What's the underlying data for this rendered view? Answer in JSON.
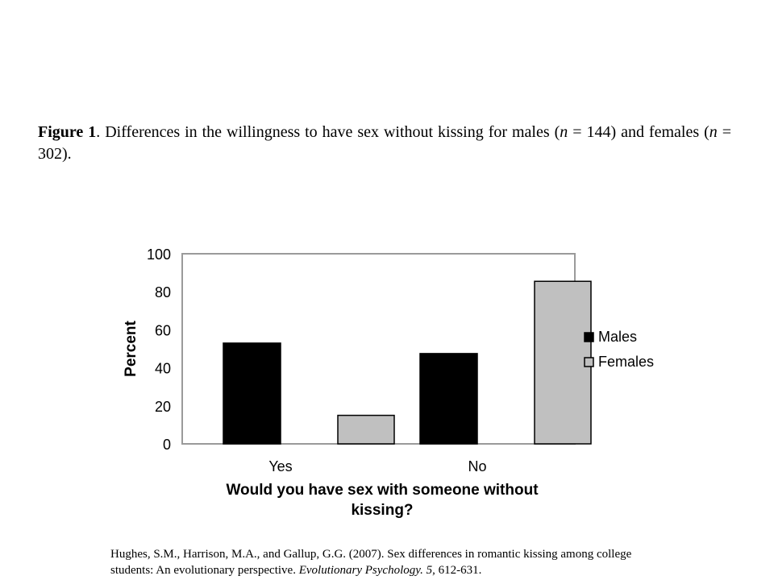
{
  "caption": {
    "label": "Figure 1",
    "text_1": ". Differences in the willingness to have sex without kissing for males (",
    "n_symbol_1": "n",
    "text_2": " = 144) and females (",
    "n_symbol_2": "n",
    "text_3": " = 302)."
  },
  "citation": {
    "text_1": "Hughes, S.M., Harrison, M.A., and Gallup, G.G. (2007). Sex differences in romantic kissing among college students: An evolutionary perspective. ",
    "journal": "Evolutionary Psychology. 5",
    "text_2": ", 612-631."
  },
  "chart_data": {
    "type": "bar",
    "categories": [
      "Yes",
      "No"
    ],
    "series": [
      {
        "name": "Males",
        "values": [
          53,
          47.5
        ],
        "color": "#000000"
      },
      {
        "name": "Females",
        "values": [
          15,
          85.5
        ],
        "color": "#c0c0c0"
      }
    ],
    "xlabel": "Would you have sex with someone without kissing?",
    "ylabel": "Percent",
    "ylim": [
      0,
      100
    ],
    "yticks": [
      "0",
      "20",
      "40",
      "60",
      "80",
      "100"
    ],
    "grid": false,
    "legend_position": "right"
  }
}
